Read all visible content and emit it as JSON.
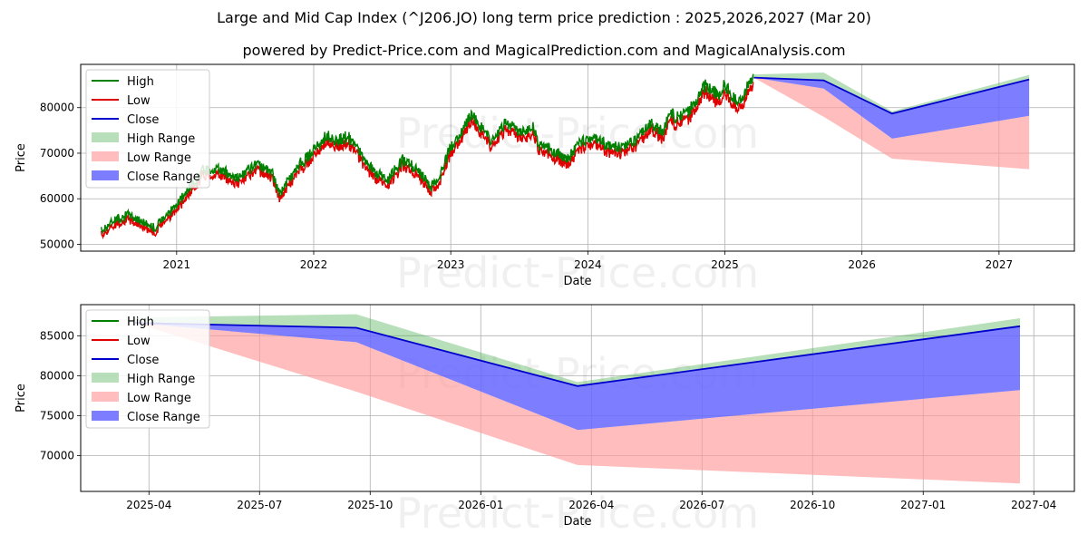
{
  "titles": {
    "main": "Large and Mid Cap Index (^J206.JO) long term price prediction : 2025,2026,2027 (Mar 20)",
    "sub": "powered by Predict-Price.com and MagicalPrediction.com and MagicalAnalysis.com"
  },
  "watermark": "Predict-Price.com",
  "colors": {
    "high": "#008000",
    "low": "#e00000",
    "close": "#0000cc",
    "high_range": "#4caf50",
    "low_range": "#ff9999",
    "close_range": "#6666ff",
    "grid": "#b0b0b0"
  },
  "chart_data": [
    {
      "type": "line",
      "name": "history-and-forecast",
      "xlabel": "Date",
      "ylabel": "Price",
      "xlim": [
        2020.3,
        2027.55
      ],
      "ylim": [
        48500,
        89500
      ],
      "grid": true,
      "legend_position": "top-left",
      "x_ticks": [
        2021,
        2022,
        2023,
        2024,
        2025,
        2026,
        2027
      ],
      "x_tick_labels": [
        "2021",
        "2022",
        "2023",
        "2024",
        "2025",
        "2026",
        "2027"
      ],
      "y_ticks": [
        50000,
        60000,
        70000,
        80000
      ],
      "y_tick_labels": [
        "50000",
        "60000",
        "70000",
        "80000"
      ],
      "legend": [
        "High",
        "Low",
        "Close",
        "High Range",
        "Low Range",
        "Close Range"
      ],
      "history": {
        "x": [
          2020.45,
          2020.55,
          2020.65,
          2020.75,
          2020.85,
          2020.9,
          2021.0,
          2021.1,
          2021.2,
          2021.3,
          2021.45,
          2021.6,
          2021.7,
          2021.75,
          2021.8,
          2021.9,
          2022.0,
          2022.1,
          2022.15,
          2022.25,
          2022.35,
          2022.45,
          2022.55,
          2022.65,
          2022.75,
          2022.85,
          2022.92,
          2023.0,
          2023.05,
          2023.15,
          2023.2,
          2023.3,
          2023.4,
          2023.5,
          2023.6,
          2023.65,
          2023.75,
          2023.85,
          2023.95,
          2024.05,
          2024.15,
          2024.25,
          2024.35,
          2024.45,
          2024.55,
          2024.6,
          2024.65,
          2024.75,
          2024.85,
          2024.95,
          2025.0,
          2025.1,
          2025.21
        ],
        "close": [
          52500,
          55000,
          56000,
          54500,
          53000,
          55500,
          58000,
          62000,
          66000,
          66000,
          64000,
          67000,
          65000,
          60500,
          63000,
          67000,
          70000,
          73500,
          72000,
          73000,
          69000,
          65000,
          64000,
          68000,
          66000,
          62000,
          64000,
          71000,
          72000,
          78000,
          76000,
          72000,
          76000,
          74000,
          75000,
          71000,
          70000,
          68000,
          72000,
          73000,
          71000,
          70500,
          72000,
          76000,
          74000,
          78000,
          77000,
          79000,
          84000,
          82000,
          84000,
          80000,
          86500
        ]
      },
      "forecast": {
        "x": [
          2025.21,
          2025.72,
          2026.22,
          2027.22
        ],
        "close": [
          86600,
          86000,
          78700,
          86200
        ],
        "high_range_upper": [
          87300,
          87700,
          79200,
          87200
        ],
        "close_range_lower": [
          86600,
          84200,
          73200,
          78200
        ],
        "low_range_lower": [
          86600,
          78000,
          68800,
          66500
        ]
      }
    },
    {
      "type": "line",
      "name": "forecast-zoom",
      "xlabel": "Date",
      "ylabel": "Price",
      "ylim": [
        65500,
        88900
      ],
      "grid": true,
      "legend_position": "top-left",
      "x_ticks": [
        "2025-04",
        "2025-07",
        "2025-10",
        "2026-01",
        "2026-04",
        "2026-07",
        "2026-10",
        "2027-01",
        "2027-04"
      ],
      "y_ticks": [
        70000,
        75000,
        80000,
        85000
      ],
      "y_tick_labels": [
        "70000",
        "75000",
        "80000",
        "85000"
      ],
      "legend": [
        "High",
        "Low",
        "Close",
        "High Range",
        "Low Range",
        "Close Range"
      ],
      "x": [
        "2025-03-20",
        "2025-09-20",
        "2026-03-20",
        "2027-03-20"
      ],
      "close": [
        86600,
        86000,
        78700,
        86200
      ],
      "high_range_upper": [
        87300,
        87700,
        79200,
        87200
      ],
      "close_range_lower": [
        86600,
        84200,
        73200,
        78200
      ],
      "low_range_lower": [
        86600,
        78000,
        68800,
        66500
      ]
    }
  ]
}
